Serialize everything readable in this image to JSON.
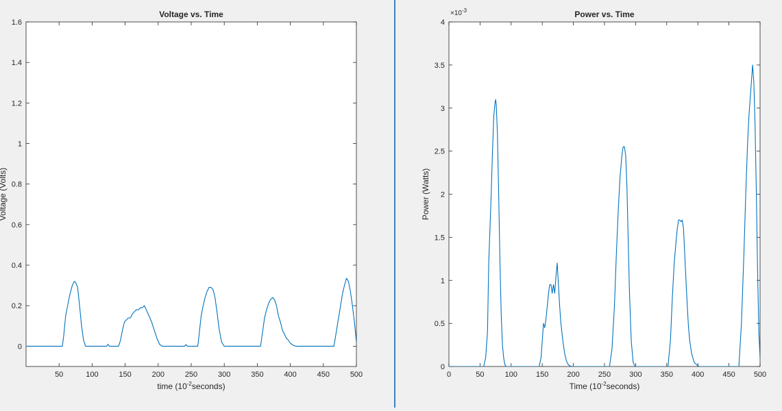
{
  "colors": {
    "line": "#0072bd",
    "axis": "#262626",
    "background": "#f0f0f0",
    "plot_bg": "#ffffff",
    "divider": "#3b7fc4"
  },
  "chart_data": [
    {
      "type": "line",
      "title": "Voltage vs. Time",
      "xlabel": {
        "main": "time (10",
        "sup": "-2",
        "tail": "seconds)"
      },
      "ylabel": "Voltage (Volts)",
      "xlim": [
        0,
        500
      ],
      "ylim": [
        -0.1,
        1.6
      ],
      "xticks": [
        50,
        100,
        150,
        200,
        250,
        300,
        350,
        400,
        450,
        500
      ],
      "xtick_labels": [
        "50",
        "100",
        "150",
        "200",
        "250",
        "300",
        "350",
        "400",
        "450",
        "500"
      ],
      "yticks": [
        0,
        0.2,
        0.4,
        0.6,
        0.8,
        1,
        1.2,
        1.4,
        1.6
      ],
      "ytick_labels": [
        "0",
        "0.2",
        "0.4",
        "0.6",
        "0.8",
        "1",
        "1.2",
        "1.4",
        "1.6"
      ],
      "exponent_label": "",
      "grid": false,
      "series": [
        {
          "x": [
            0,
            55,
            57,
            60,
            63,
            66,
            70,
            73,
            75,
            78,
            81,
            84,
            87,
            90,
            95,
            122,
            124,
            126,
            140,
            143,
            146,
            149,
            152,
            155,
            158,
            161,
            164,
            167,
            170,
            173,
            176,
            179,
            182,
            186,
            190,
            194,
            198,
            202,
            206,
            240,
            242,
            244,
            260,
            262,
            265,
            268,
            271,
            274,
            277,
            280,
            283,
            286,
            289,
            292,
            296,
            300,
            355,
            358,
            361,
            364,
            367,
            370,
            373,
            376,
            379,
            382,
            385,
            388,
            391,
            394,
            397,
            400,
            404,
            408,
            466,
            468,
            472,
            476,
            479,
            482,
            485,
            488,
            491,
            494,
            497,
            500
          ],
          "y": [
            0,
            0,
            0.05,
            0.15,
            0.2,
            0.25,
            0.3,
            0.32,
            0.315,
            0.29,
            0.2,
            0.1,
            0.03,
            0,
            0,
            0,
            0.01,
            0,
            0,
            0.03,
            0.08,
            0.12,
            0.13,
            0.14,
            0.14,
            0.16,
            0.17,
            0.18,
            0.18,
            0.19,
            0.19,
            0.2,
            0.18,
            0.15,
            0.12,
            0.08,
            0.04,
            0.01,
            0,
            0,
            0.008,
            0,
            0,
            0.06,
            0.15,
            0.2,
            0.24,
            0.27,
            0.29,
            0.29,
            0.28,
            0.24,
            0.17,
            0.09,
            0.02,
            0,
            0,
            0.07,
            0.14,
            0.18,
            0.21,
            0.23,
            0.24,
            0.23,
            0.2,
            0.15,
            0.12,
            0.08,
            0.06,
            0.04,
            0.03,
            0.015,
            0.005,
            0,
            0,
            0.04,
            0.12,
            0.2,
            0.26,
            0.3,
            0.335,
            0.32,
            0.27,
            0.2,
            0.12,
            0.02
          ]
        }
      ]
    },
    {
      "type": "line",
      "title": "Power vs. Time",
      "xlabel": {
        "main": "Time (10",
        "sup": "-2",
        "tail": "seconds)"
      },
      "ylabel": "Power (Watts)",
      "xlim": [
        0,
        500
      ],
      "ylim": [
        0,
        4
      ],
      "xticks": [
        0,
        50,
        100,
        150,
        200,
        250,
        300,
        350,
        400,
        450,
        500
      ],
      "xtick_labels": [
        "0",
        "50",
        "100",
        "150",
        "200",
        "250",
        "300",
        "350",
        "400",
        "450",
        "500"
      ],
      "yticks": [
        0,
        0.5,
        1,
        1.5,
        2,
        2.5,
        3,
        3.5,
        4
      ],
      "ytick_labels": [
        "0",
        "0.5",
        "1",
        "1.5",
        "2",
        "2.5",
        "3",
        "3.5",
        "4"
      ],
      "exponent_label": {
        "main": "×10",
        "sup": "-3"
      },
      "grid": false,
      "series": [
        {
          "x": [
            0,
            56,
            59,
            62,
            64,
            66,
            68,
            70,
            72,
            74,
            75,
            76,
            78,
            80,
            82,
            84,
            86,
            88,
            90,
            92,
            145,
            148,
            150,
            152,
            154,
            156,
            158,
            160,
            162,
            164,
            166,
            168,
            170,
            172,
            174,
            176,
            178,
            180,
            183,
            186,
            189,
            192,
            195,
            198,
            258,
            262,
            266,
            269,
            272,
            275,
            278,
            280,
            282,
            284,
            286,
            288,
            290,
            293,
            296,
            299,
            352,
            356,
            359,
            362,
            365,
            367,
            369,
            371,
            373,
            375,
            377,
            379,
            381,
            383,
            385,
            387,
            390,
            394,
            398,
            402,
            466,
            470,
            474,
            477,
            480,
            482,
            484,
            486,
            488,
            490,
            492,
            494,
            496,
            498,
            500
          ],
          "y": [
            0,
            0,
            0.1,
            0.4,
            1.2,
            1.6,
            2.0,
            2.5,
            2.9,
            3.05,
            3.1,
            3.05,
            2.7,
            2.0,
            1.2,
            0.6,
            0.25,
            0.1,
            0.02,
            0,
            0,
            0.1,
            0.3,
            0.5,
            0.45,
            0.55,
            0.7,
            0.85,
            0.95,
            0.95,
            0.85,
            0.95,
            0.85,
            1.05,
            1.2,
            0.95,
            0.7,
            0.5,
            0.3,
            0.15,
            0.06,
            0.02,
            0.005,
            0,
            0,
            0.2,
            0.7,
            1.3,
            1.8,
            2.2,
            2.45,
            2.55,
            2.55,
            2.45,
            2.1,
            1.5,
            0.9,
            0.3,
            0.05,
            0,
            0,
            0.3,
            0.8,
            1.2,
            1.45,
            1.6,
            1.7,
            1.7,
            1.68,
            1.7,
            1.6,
            1.3,
            1.0,
            0.7,
            0.45,
            0.3,
            0.15,
            0.05,
            0.02,
            0,
            0,
            0.5,
            1.3,
            2.0,
            2.6,
            2.9,
            3.1,
            3.3,
            3.5,
            3.3,
            2.8,
            2.0,
            1.1,
            0.4,
            0.1
          ]
        }
      ]
    }
  ]
}
